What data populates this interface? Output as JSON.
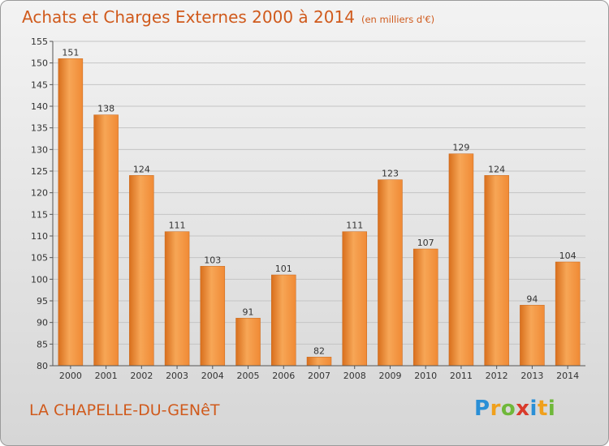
{
  "chart_data": {
    "type": "bar",
    "title": "Achats et Charges Externes 2000 à 2014",
    "subtitle": "(en milliers d'€)",
    "categories": [
      "2000",
      "2001",
      "2002",
      "2003",
      "2004",
      "2005",
      "2006",
      "2007",
      "2008",
      "2009",
      "2010",
      "2011",
      "2012",
      "2013",
      "2014"
    ],
    "values": [
      151,
      138,
      124,
      111,
      103,
      91,
      101,
      82,
      111,
      123,
      107,
      129,
      124,
      94,
      104
    ],
    "ylim": [
      80,
      155
    ],
    "yticks": [
      80,
      85,
      90,
      95,
      100,
      105,
      110,
      115,
      120,
      125,
      130,
      135,
      140,
      145,
      150,
      155
    ],
    "grid": true,
    "bar_color": "#f08a35",
    "bar_color_light": "#f7a656",
    "bar_color_dark": "#d86f1d"
  },
  "footer": {
    "commune": "LA CHAPELLE-DU-GENêT",
    "logo_text": "Proxiti",
    "logo_colors": [
      "#2a8fd6",
      "#f0a01c",
      "#6fb83a",
      "#d93a2b",
      "#2a8fd6",
      "#f0a01c",
      "#6fb83a"
    ]
  }
}
